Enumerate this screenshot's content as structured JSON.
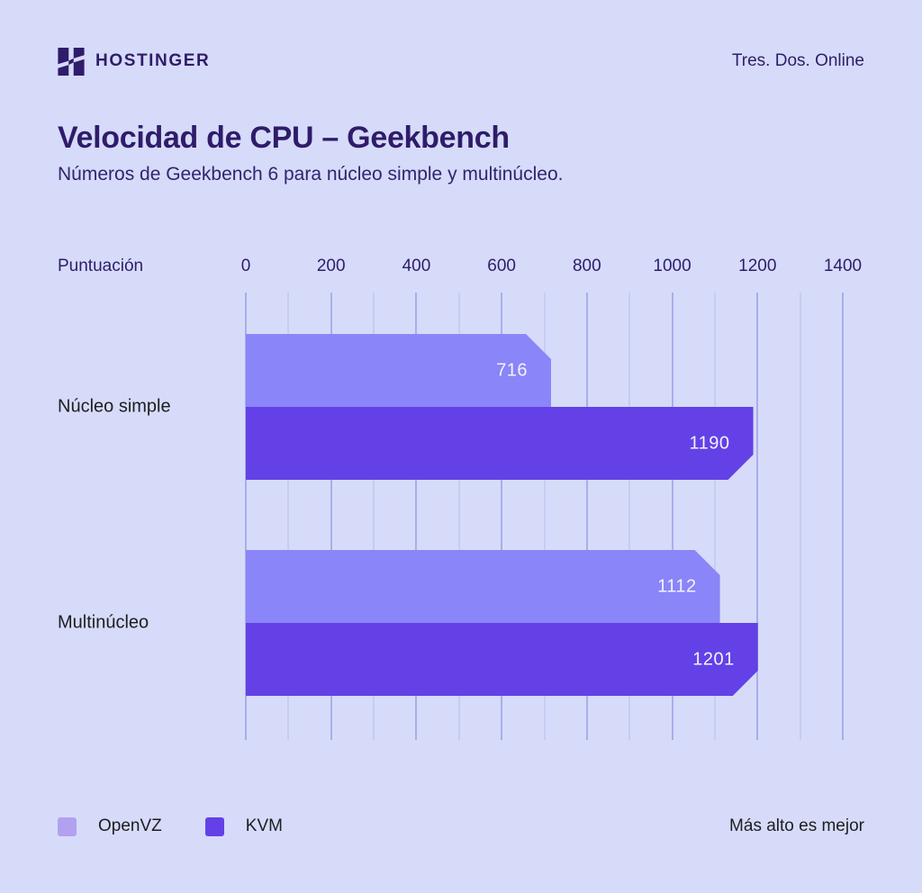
{
  "colors": {
    "background": "#D6DBF9",
    "brand_dark_purple": "#2F1C6A",
    "text_dark": "#1D1E20",
    "grid_major": "#A9AEE9",
    "grid_minor": "#C7CCF4",
    "value_label": "#F4F2FF"
  },
  "header": {
    "brand": "HOSTINGER",
    "tagline": "Tres. Dos. Online"
  },
  "title": "Velocidad de CPU – Geekbench",
  "subtitle": "Números de Geekbench 6 para núcleo simple y multinúcleo.",
  "chart_data": {
    "type": "bar",
    "orientation": "horizontal",
    "axis_label": "Puntuación",
    "xlabel": "",
    "ylabel": "Puntuación",
    "xlim": [
      0,
      1400
    ],
    "ticks": [
      0,
      200,
      400,
      600,
      800,
      1000,
      1200,
      1400
    ],
    "grid": {
      "on": true,
      "minor_every": 100,
      "major_every": 200
    },
    "categories": [
      "Núcleo simple",
      "Multinúcleo"
    ],
    "series": [
      {
        "name": "OpenVZ",
        "color": "#8A85F8",
        "legend_color": "#B2A1EF",
        "values": [
          716,
          1112
        ]
      },
      {
        "name": "KVM",
        "color": "#6341E6",
        "legend_color": "#6341E6",
        "values": [
          1190,
          1201
        ]
      }
    ],
    "legend_position": "bottom-left",
    "note": "Más alto es mejor"
  }
}
